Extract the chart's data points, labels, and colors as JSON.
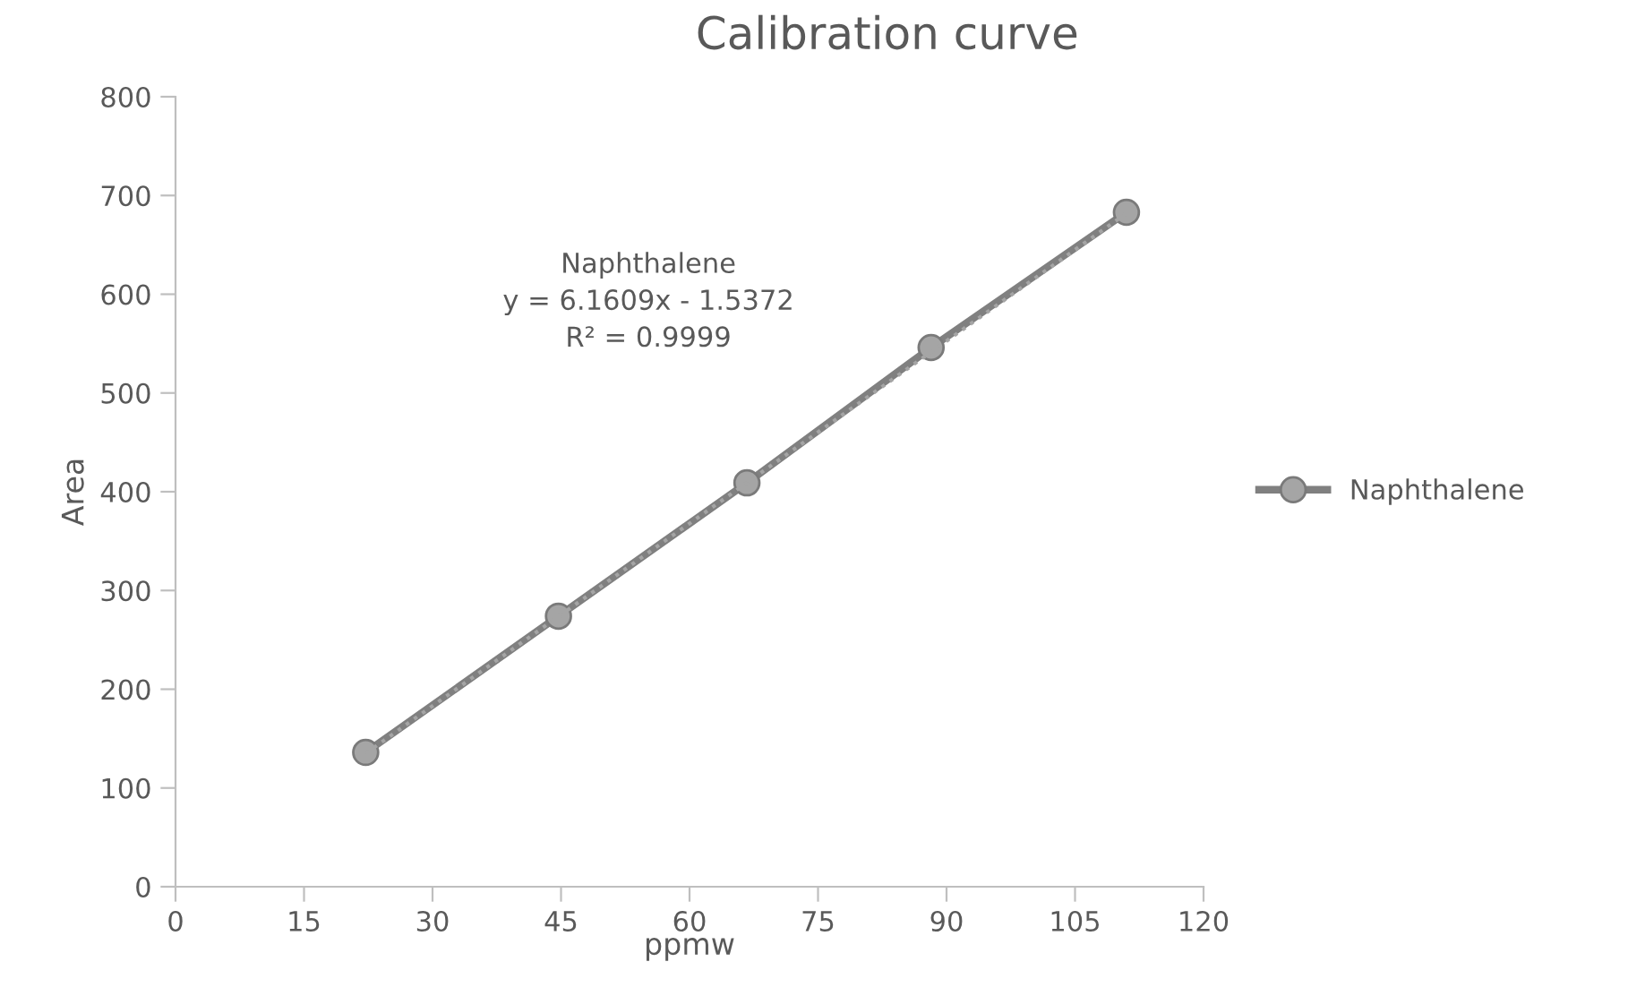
{
  "chart_data": {
    "type": "line",
    "title": "Calibration curve",
    "xlabel": "ppmw",
    "ylabel": "Area",
    "xlim": [
      0,
      120
    ],
    "xticks": [
      0,
      15,
      30,
      45,
      60,
      75,
      90,
      105,
      120
    ],
    "ylim": [
      0,
      800
    ],
    "yticks": [
      0,
      100,
      200,
      300,
      400,
      500,
      600,
      700,
      800
    ],
    "grid": false,
    "legend": "right",
    "marker": "circle",
    "line_style": "solid",
    "series": [
      {
        "name": "Naphthalene",
        "color": "#808080",
        "x": [
          22.2,
          44.7,
          66.7,
          88.2,
          111.0
        ],
        "values": [
          136,
          274,
          409,
          546,
          683
        ]
      },
      {
        "type": "line",
        "line_style": "dotted",
        "marker": "none",
        "color": "#a5a5a5",
        "x": [
          22.2,
          111.0
        ],
        "values": [
          135,
          682
        ]
      }
    ],
    "annotations": [
      "Naphthalene\ny = 6.1609x - 1.5372\nR² = 0.9999"
    ]
  }
}
